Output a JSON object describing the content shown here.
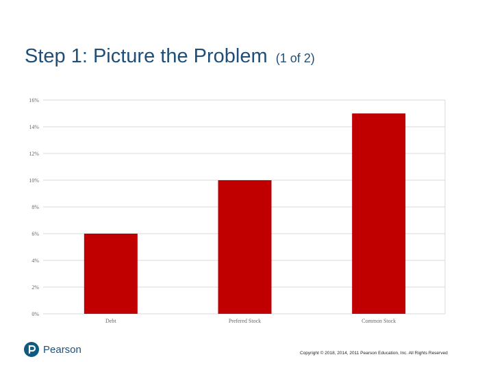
{
  "slide": {
    "title": "Step 1: Picture the Problem",
    "title_suffix": "(1 of 2)"
  },
  "chart_data": {
    "type": "bar",
    "categories": [
      "Debt",
      "Prefered Stock",
      "Common Stock"
    ],
    "values": [
      6,
      10,
      15
    ],
    "y_ticks": [
      "0%",
      "2%",
      "4%",
      "6%",
      "8%",
      "10%",
      "12%",
      "14%",
      "16%"
    ],
    "ylim": [
      0,
      16
    ],
    "grid": true,
    "bar_color": "#c00000"
  },
  "footer": {
    "logo_text": "Pearson",
    "copyright": "Copyright © 2018, 2014, 2011 Pearson Education, Inc. All Rights Reserved"
  }
}
